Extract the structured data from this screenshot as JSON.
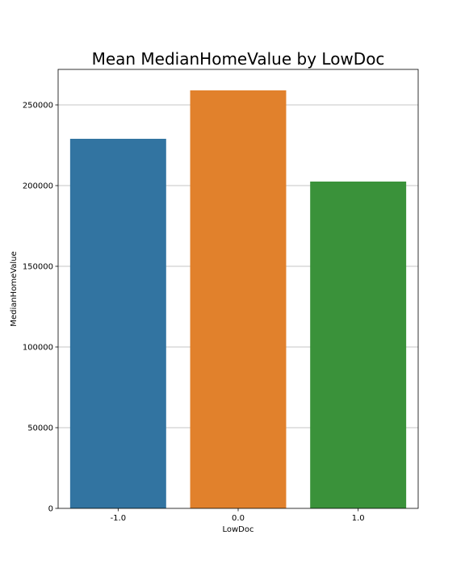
{
  "chart_data": {
    "type": "bar",
    "title": "Mean MedianHomeValue by LowDoc",
    "xlabel": "LowDoc",
    "ylabel": "MedianHomeValue",
    "categories": [
      "-1.0",
      "0.0",
      "1.0"
    ],
    "values": [
      229000,
      259000,
      202500
    ],
    "colors": [
      "#3274a1",
      "#e1812c",
      "#3a923a"
    ],
    "ylim": [
      0,
      272000
    ],
    "yticks": [
      0,
      50000,
      100000,
      150000,
      200000,
      250000
    ],
    "ytick_labels": [
      "0",
      "50000",
      "100000",
      "150000",
      "200000",
      "250000"
    ],
    "grid": "horizontal",
    "legend": "none"
  }
}
